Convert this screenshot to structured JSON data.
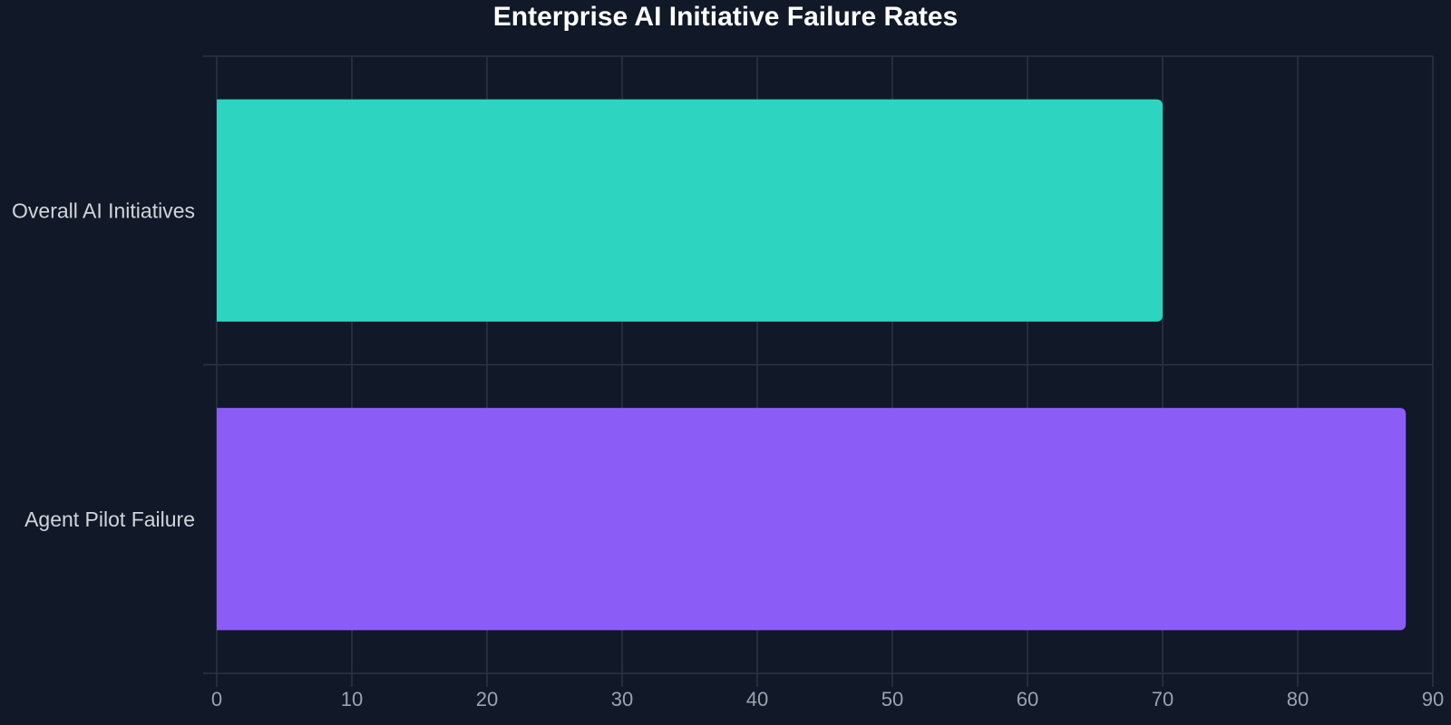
{
  "chart_data": {
    "type": "bar",
    "orientation": "horizontal",
    "title": "Enterprise AI Initiative Failure Rates",
    "xlabel": "",
    "ylabel": "",
    "categories": [
      "Overall AI Initiatives",
      "Agent Pilot Failure"
    ],
    "values": [
      70,
      88
    ],
    "colors": [
      "#2dd4bf",
      "#8b5cf6"
    ],
    "xlim": [
      0,
      90
    ],
    "xticks": [
      0,
      10,
      20,
      30,
      40,
      50,
      60,
      70,
      80,
      90
    ],
    "grid": true,
    "legend": "none"
  },
  "theme": {
    "background": "#111827",
    "grid_color": "#2b3443",
    "title_color": "#ffffff",
    "tick_color": "#9ca3af",
    "category_color": "#d1d5db"
  }
}
